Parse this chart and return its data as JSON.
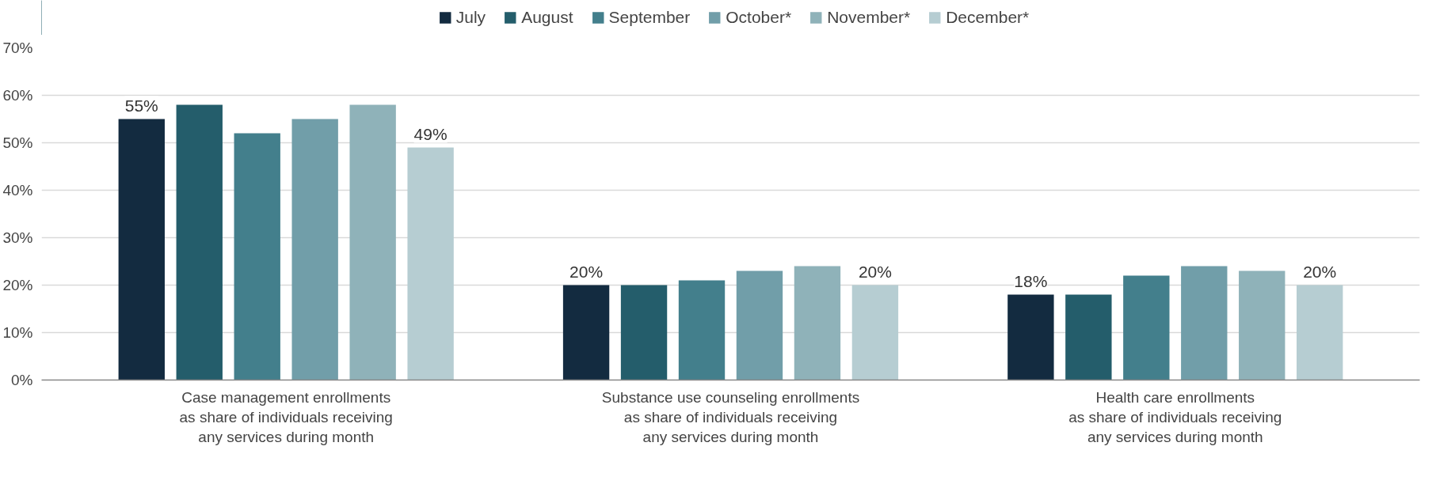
{
  "chart_data": {
    "type": "bar",
    "categories": [
      "Case management enrollments\nas share of individuals receiving\nany services during month",
      "Substance use counseling enrollments\nas share of individuals receiving\nany services during month",
      "Health care enrollments\nas share of individuals receiving\nany services during month"
    ],
    "series": [
      {
        "name": "July",
        "color": "#132b40",
        "values": [
          55,
          20,
          18
        ],
        "value_labels": [
          "55%",
          "20%",
          "18%"
        ]
      },
      {
        "name": "August",
        "color": "#245d6b",
        "values": [
          58,
          20,
          18
        ]
      },
      {
        "name": "September",
        "color": "#437f8c",
        "values": [
          52,
          21,
          22
        ]
      },
      {
        "name": "October*",
        "color": "#719ea9",
        "values": [
          55,
          23,
          24
        ]
      },
      {
        "name": "November*",
        "color": "#8fb2b9",
        "values": [
          58,
          24,
          23
        ]
      },
      {
        "name": "December*",
        "color": "#b6cdd2",
        "values": [
          49,
          20,
          20
        ],
        "value_labels": [
          "49%",
          "20%",
          "20%"
        ]
      }
    ],
    "ylim": [
      0,
      70
    ],
    "yticks": [
      {
        "value": 0,
        "label": "0%"
      },
      {
        "value": 10,
        "label": "10%"
      },
      {
        "value": 20,
        "label": "20%"
      },
      {
        "value": 30,
        "label": "30%"
      },
      {
        "value": 40,
        "label": "40%"
      },
      {
        "value": 50,
        "label": "50%"
      },
      {
        "value": 60,
        "label": "60%"
      },
      {
        "value": 70,
        "label": "70%"
      }
    ],
    "grid": "y",
    "legend": "top"
  }
}
